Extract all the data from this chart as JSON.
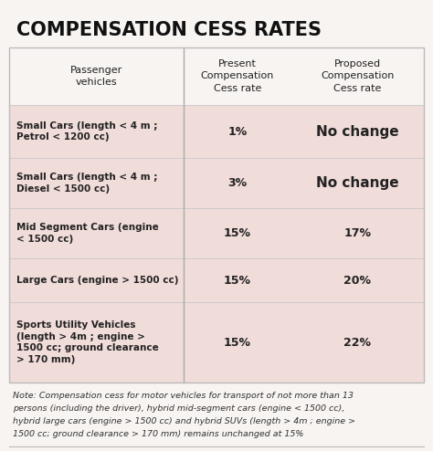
{
  "title": "COMPENSATION CESS RATES",
  "col_headers_line1": [
    "Passenger",
    "Present",
    "Proposed"
  ],
  "col_headers_line2": [
    "vehicles",
    "Compensation",
    "Compensation"
  ],
  "col_headers_line3": [
    "",
    "Cess rate",
    "Cess rate"
  ],
  "rows": [
    {
      "vehicle": "Small Cars (length < 4 m ;\nPetrol < 1200 cc)",
      "present": "1%",
      "proposed": "No change",
      "proposed_large": true
    },
    {
      "vehicle": "Small Cars (length < 4 m ;\nDiesel < 1500 cc)",
      "present": "3%",
      "proposed": "No change",
      "proposed_large": true
    },
    {
      "vehicle": "Mid Segment Cars (engine\n< 1500 cc)",
      "present": "15%",
      "proposed": "17%",
      "proposed_large": false
    },
    {
      "vehicle": "Large Cars (engine > 1500 cc)",
      "present": "15%",
      "proposed": "20%",
      "proposed_large": false
    },
    {
      "vehicle": "Sports Utility Vehicles\n(length > 4m ; engine >\n1500 cc; ground clearance\n> 170 mm)",
      "present": "15%",
      "proposed": "22%",
      "proposed_large": false
    }
  ],
  "note_lines": [
    "Note: Compensation cess for motor vehicles for transport of not more than 13",
    "persons (including the driver), hybrid mid-segment cars (engine < 1500 cc),",
    "hybrid large cars (engine > 1500 cc) and hybrid SUVs (length > 4m ; engine >",
    "1500 cc; ground clearance > 170 mm) remains unchanged at 15%"
  ],
  "bg_color": "#f7f4f2",
  "row_bg_color": "#f0dcd9",
  "title_color": "#111111",
  "text_color": "#222222",
  "note_color": "#333333",
  "divider_color": "#aaaaaa",
  "border_color": "#bbbbbb",
  "col_split": 0.42,
  "col2_split": 0.68
}
